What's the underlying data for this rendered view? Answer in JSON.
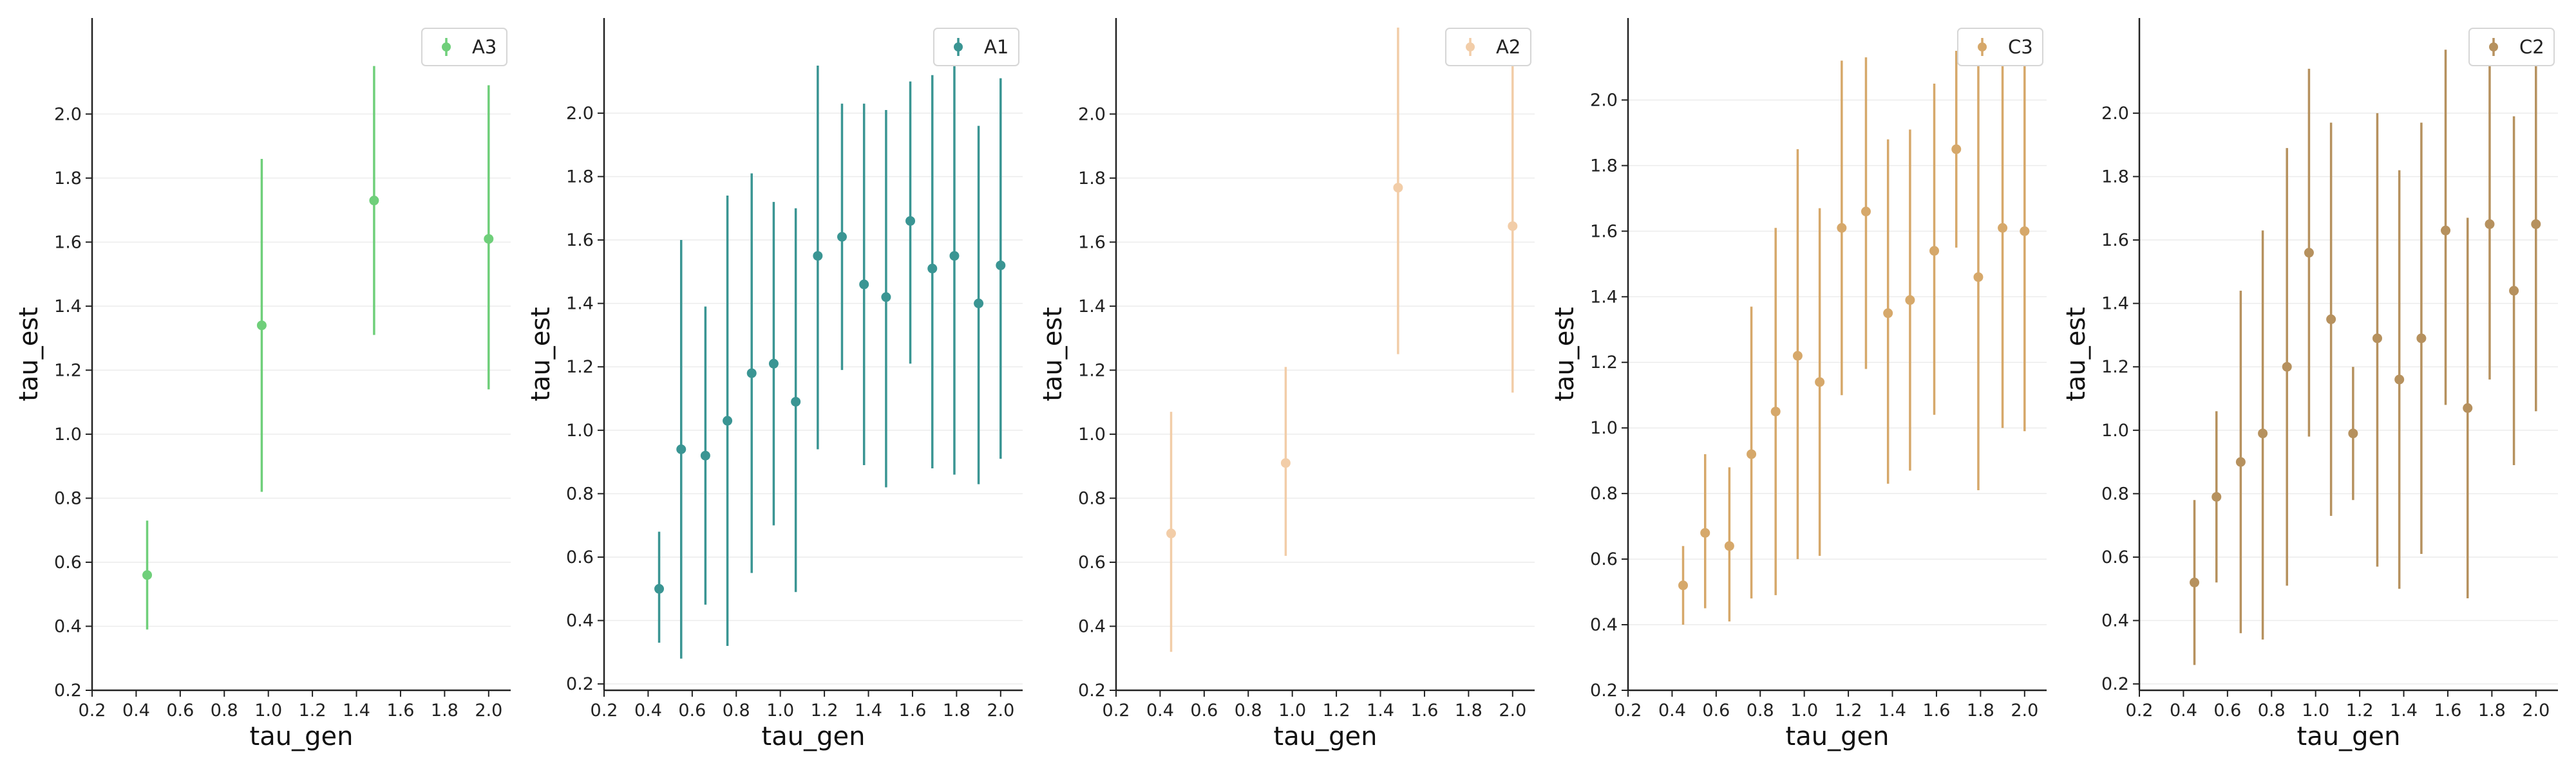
{
  "chart_data": [
    {
      "type": "scatter",
      "xlabel": "tau_gen",
      "ylabel": "tau_est",
      "xlim": [
        0.2,
        2.1
      ],
      "ylim": [
        0.2,
        2.3
      ],
      "xticks": [
        0.2,
        0.4,
        0.6,
        0.8,
        1.0,
        1.2,
        1.4,
        1.6,
        1.8,
        2.0
      ],
      "yticks": [
        0.2,
        0.4,
        0.6,
        0.8,
        1.0,
        1.2,
        1.4,
        1.6,
        1.8,
        2.0
      ],
      "grid": "horizontal",
      "legend_position": "top-right",
      "series": [
        {
          "name": "A3",
          "color": "#6fcf7a",
          "x": [
            0.45,
            0.97,
            1.48,
            2.0
          ],
          "y": [
            0.56,
            1.34,
            1.73,
            1.61
          ],
          "yerr_low": [
            0.39,
            0.82,
            1.31,
            1.14
          ],
          "yerr_high": [
            0.73,
            1.86,
            2.15,
            2.09
          ]
        }
      ]
    },
    {
      "type": "scatter",
      "xlabel": "tau_gen",
      "ylabel": "tau_est",
      "xlim": [
        0.2,
        2.1
      ],
      "ylim": [
        0.18,
        2.3
      ],
      "xticks": [
        0.2,
        0.4,
        0.6,
        0.8,
        1.0,
        1.2,
        1.4,
        1.6,
        1.8,
        2.0
      ],
      "yticks": [
        0.2,
        0.4,
        0.6,
        0.8,
        1.0,
        1.2,
        1.4,
        1.6,
        1.8,
        2.0
      ],
      "grid": "horizontal",
      "legend_position": "top-right",
      "series": [
        {
          "name": "A1",
          "color": "#3a9593",
          "x": [
            0.45,
            0.55,
            0.66,
            0.76,
            0.87,
            0.97,
            1.07,
            1.17,
            1.28,
            1.38,
            1.48,
            1.59,
            1.69,
            1.79,
            1.9,
            2.0
          ],
          "y": [
            0.5,
            0.94,
            0.92,
            1.03,
            1.18,
            1.21,
            1.09,
            1.55,
            1.61,
            1.46,
            1.42,
            1.66,
            1.51,
            1.55,
            1.4,
            1.52
          ],
          "yerr_low": [
            0.33,
            0.28,
            0.45,
            0.32,
            0.55,
            0.7,
            0.49,
            0.94,
            1.19,
            0.89,
            0.82,
            1.21,
            0.88,
            0.86,
            0.83,
            0.91
          ],
          "yerr_high": [
            0.68,
            1.6,
            1.39,
            1.74,
            1.81,
            1.72,
            1.7,
            2.15,
            2.03,
            2.03,
            2.01,
            2.1,
            2.12,
            2.2,
            1.96,
            2.11
          ]
        }
      ]
    },
    {
      "type": "scatter",
      "xlabel": "tau_gen",
      "ylabel": "tau_est",
      "xlim": [
        0.2,
        2.1
      ],
      "ylim": [
        0.2,
        2.3
      ],
      "xticks": [
        0.2,
        0.4,
        0.6,
        0.8,
        1.0,
        1.2,
        1.4,
        1.6,
        1.8,
        2.0
      ],
      "yticks": [
        0.2,
        0.4,
        0.6,
        0.8,
        1.0,
        1.2,
        1.4,
        1.6,
        1.8,
        2.0
      ],
      "grid": "horizontal",
      "legend_position": "top-right",
      "series": [
        {
          "name": "A2",
          "color": "#f2cda8",
          "x": [
            0.45,
            0.97,
            1.48,
            2.0
          ],
          "y": [
            0.69,
            0.91,
            1.77,
            1.65
          ],
          "yerr_low": [
            0.32,
            0.62,
            1.25,
            1.13
          ],
          "yerr_high": [
            1.07,
            1.21,
            2.27,
            2.16
          ]
        }
      ]
    },
    {
      "type": "scatter",
      "xlabel": "tau_gen",
      "ylabel": "tau_est",
      "xlim": [
        0.2,
        2.1
      ],
      "ylim": [
        0.2,
        2.25
      ],
      "xticks": [
        0.2,
        0.4,
        0.6,
        0.8,
        1.0,
        1.2,
        1.4,
        1.6,
        1.8,
        2.0
      ],
      "yticks": [
        0.2,
        0.4,
        0.6,
        0.8,
        1.0,
        1.2,
        1.4,
        1.6,
        1.8,
        2.0
      ],
      "grid": "horizontal",
      "legend_position": "top-right",
      "series": [
        {
          "name": "C3",
          "color": "#d6a86a",
          "x": [
            0.45,
            0.55,
            0.66,
            0.76,
            0.87,
            0.97,
            1.07,
            1.17,
            1.28,
            1.38,
            1.48,
            1.59,
            1.69,
            1.79,
            1.9,
            2.0
          ],
          "y": [
            0.52,
            0.68,
            0.64,
            0.92,
            1.05,
            1.22,
            1.14,
            1.61,
            1.66,
            1.35,
            1.39,
            1.54,
            1.85,
            1.46,
            1.61,
            1.6
          ],
          "yerr_low": [
            0.4,
            0.45,
            0.41,
            0.48,
            0.49,
            0.6,
            0.61,
            1.1,
            1.18,
            0.83,
            0.87,
            1.04,
            1.55,
            0.81,
            1.0,
            0.99
          ],
          "yerr_high": [
            0.64,
            0.92,
            0.88,
            1.37,
            1.61,
            1.85,
            1.67,
            2.12,
            2.13,
            1.88,
            1.91,
            2.05,
            2.15,
            2.11,
            2.22,
            2.21
          ]
        }
      ]
    },
    {
      "type": "scatter",
      "xlabel": "tau_gen",
      "ylabel": "tau_est",
      "xlim": [
        0.2,
        2.1
      ],
      "ylim": [
        0.18,
        2.3
      ],
      "xticks": [
        0.2,
        0.4,
        0.6,
        0.8,
        1.0,
        1.2,
        1.4,
        1.6,
        1.8,
        2.0
      ],
      "yticks": [
        0.2,
        0.4,
        0.6,
        0.8,
        1.0,
        1.2,
        1.4,
        1.6,
        1.8,
        2.0
      ],
      "grid": "horizontal",
      "legend_position": "top-right",
      "series": [
        {
          "name": "C2",
          "color": "#b6915e",
          "x": [
            0.45,
            0.55,
            0.66,
            0.76,
            0.87,
            0.97,
            1.07,
            1.17,
            1.28,
            1.38,
            1.48,
            1.59,
            1.69,
            1.79,
            1.9,
            2.0
          ],
          "y": [
            0.52,
            0.79,
            0.9,
            0.99,
            1.2,
            1.56,
            1.35,
            0.99,
            1.29,
            1.16,
            1.29,
            1.63,
            1.07,
            1.65,
            1.44,
            1.65
          ],
          "yerr_low": [
            0.26,
            0.52,
            0.36,
            0.34,
            0.51,
            0.98,
            0.73,
            0.78,
            0.57,
            0.5,
            0.61,
            1.08,
            0.47,
            1.16,
            0.89,
            1.06
          ],
          "yerr_high": [
            0.78,
            1.06,
            1.44,
            1.63,
            1.89,
            2.14,
            1.97,
            1.2,
            2.0,
            1.82,
            1.97,
            2.2,
            1.67,
            2.2,
            1.99,
            2.25
          ]
        }
      ]
    }
  ]
}
